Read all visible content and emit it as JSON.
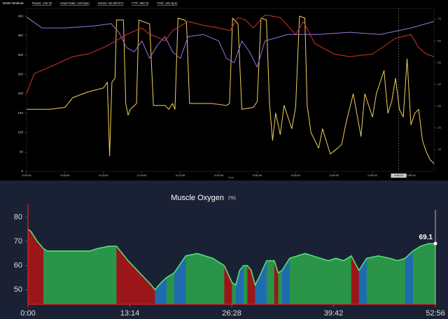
{
  "chart_data": [
    {
      "type": "line",
      "header": [
        "Entire Workout",
        "Power: 132 W",
        "Heart Rate: 134 bpm",
        "SmO2: 56.087374",
        "FTP: 280 W",
        "THR: 181 bpm"
      ],
      "xlabel": "Time",
      "xlim": [
        0,
        53
      ],
      "xticks": [
        {
          "value": 0,
          "label": "0:00:00"
        },
        {
          "value": 5,
          "label": "0:05:00"
        },
        {
          "value": 10,
          "label": "0:10:00"
        },
        {
          "value": 15,
          "label": "0:15:00"
        },
        {
          "value": 20,
          "label": "0:20:00"
        },
        {
          "value": 25,
          "label": "0:25:00"
        },
        {
          "value": 30,
          "label": "0:30:00"
        },
        {
          "value": 35,
          "label": "0:35:00"
        },
        {
          "value": 40,
          "label": "0:40:00"
        },
        {
          "value": 45,
          "label": "0:45:00"
        },
        {
          "value": 50,
          "label": "0:50:00"
        }
      ],
      "ylim": [
        0,
        420
      ],
      "yticks": [
        0,
        50,
        100,
        150,
        200,
        250,
        300,
        350,
        400
      ],
      "y2lim": [
        0,
        75
      ],
      "y2ticks": [
        10,
        20,
        30,
        40,
        50,
        60,
        70
      ],
      "cursor": {
        "value": 48.4,
        "label": "0:48:22"
      },
      "series": [
        {
          "color": "#f2cf5b",
          "x": [
            0,
            3,
            5,
            6,
            8,
            10,
            10.5,
            10.8,
            11.1,
            11.5,
            11.7,
            12.6,
            12.9,
            13.2,
            13.5,
            14.3,
            14.6,
            16,
            16.5,
            18,
            18.5,
            19,
            19.3,
            19.7,
            20.5,
            20.8,
            21.2,
            24,
            26,
            26.4,
            26.8,
            27.5,
            28,
            29.5,
            30,
            30.5,
            31.2,
            31.6,
            32,
            32.4,
            33,
            33.5,
            34.5,
            35,
            35.5,
            36.2,
            36.5,
            37,
            38,
            38.5,
            39.5,
            40.5,
            41,
            41.5,
            42.5,
            43.5,
            44,
            45,
            45.5,
            46,
            46.5,
            47,
            47.5,
            48,
            48.5,
            49,
            49.5,
            50,
            50.5,
            51,
            51.5,
            52,
            52.5,
            53
          ],
          "values": [
            160,
            160,
            165,
            190,
            205,
            215,
            230,
            40,
            230,
            240,
            390,
            390,
            175,
            145,
            160,
            175,
            390,
            380,
            170,
            170,
            160,
            175,
            160,
            395,
            390,
            385,
            175,
            175,
            170,
            175,
            395,
            380,
            160,
            165,
            180,
            395,
            390,
            175,
            80,
            150,
            95,
            170,
            110,
            165,
            400,
            395,
            170,
            100,
            60,
            110,
            45,
            60,
            70,
            120,
            200,
            90,
            200,
            140,
            200,
            230,
            260,
            150,
            180,
            240,
            160,
            140,
            290,
            120,
            150,
            160,
            80,
            50,
            30,
            20
          ]
        },
        {
          "color": "#d2352b",
          "ylim": [
            60,
            185
          ],
          "x": [
            0,
            1,
            3,
            6,
            8,
            10,
            11,
            13,
            15,
            16,
            17,
            18,
            19,
            21,
            23,
            25,
            26.5,
            27.5,
            28.5,
            29.5,
            31,
            33,
            35,
            36,
            37.5,
            40,
            42,
            45,
            48,
            50,
            51,
            52,
            53
          ],
          "values": [
            120,
            135,
            140,
            148,
            150,
            155,
            158,
            165,
            170,
            165,
            163,
            160,
            168,
            175,
            172,
            170,
            168,
            178,
            176,
            170,
            180,
            178,
            165,
            175,
            158,
            150,
            148,
            150,
            162,
            165,
            155,
            150,
            148
          ]
        },
        {
          "color": "#a070e0",
          "axis": "y2",
          "x": [
            0,
            2,
            5,
            9,
            11,
            12,
            13,
            14,
            15,
            16,
            17,
            18,
            19,
            20,
            21,
            23,
            25,
            26,
            27,
            28,
            29,
            30,
            31,
            32,
            34,
            38,
            42,
            46,
            50,
            53
          ],
          "values": [
            71,
            66,
            66,
            67,
            68,
            64,
            57,
            55,
            60,
            52,
            58,
            62,
            55,
            52,
            62,
            63,
            60,
            52,
            50,
            60,
            55,
            48,
            60,
            61,
            63,
            63,
            64,
            63,
            66,
            69
          ]
        }
      ]
    },
    {
      "type": "area",
      "title": "Muscle Oxygen",
      "unit": "(%)",
      "xlim": [
        0,
        52.93
      ],
      "xticks": [
        {
          "value": 0,
          "label": "0:00"
        },
        {
          "value": 13.23,
          "label": "13:14"
        },
        {
          "value": 26.47,
          "label": "26:28"
        },
        {
          "value": 39.7,
          "label": "39:42"
        },
        {
          "value": 52.93,
          "label": "52:56"
        }
      ],
      "ylim": [
        44,
        83
      ],
      "yticks": [
        50,
        60,
        70,
        80
      ],
      "colors": {
        "flat": "#2a9448",
        "falling": "#9c1519",
        "rising": "#1f6bb0",
        "line": "#52e07c"
      },
      "x": [
        0,
        0.4,
        1.2,
        2,
        2.5,
        4,
        6,
        8,
        9,
        10.5,
        11.5,
        12,
        13,
        14.5,
        16,
        16.5,
        17.3,
        18,
        19,
        20.5,
        22,
        24,
        25.5,
        26.5,
        27,
        27.5,
        28,
        28.5,
        29,
        29.5,
        30,
        31,
        32,
        32.5,
        33,
        34,
        36,
        38,
        39,
        40,
        41,
        42,
        43,
        44,
        45.5,
        47,
        48,
        49,
        50,
        51,
        52,
        52.93
      ],
      "values": [
        75,
        74,
        70,
        67,
        66,
        66,
        66,
        66,
        67,
        68,
        68,
        66,
        62,
        57,
        52,
        50,
        53,
        55,
        57,
        64,
        65,
        63,
        60,
        53,
        52,
        58,
        60,
        60,
        58,
        52,
        55,
        62,
        62,
        57,
        58,
        63,
        65,
        63,
        62,
        63,
        62,
        64,
        58,
        63,
        64,
        63,
        62,
        63,
        66,
        68,
        69,
        69.1
      ],
      "annotation": "69.1"
    }
  ]
}
